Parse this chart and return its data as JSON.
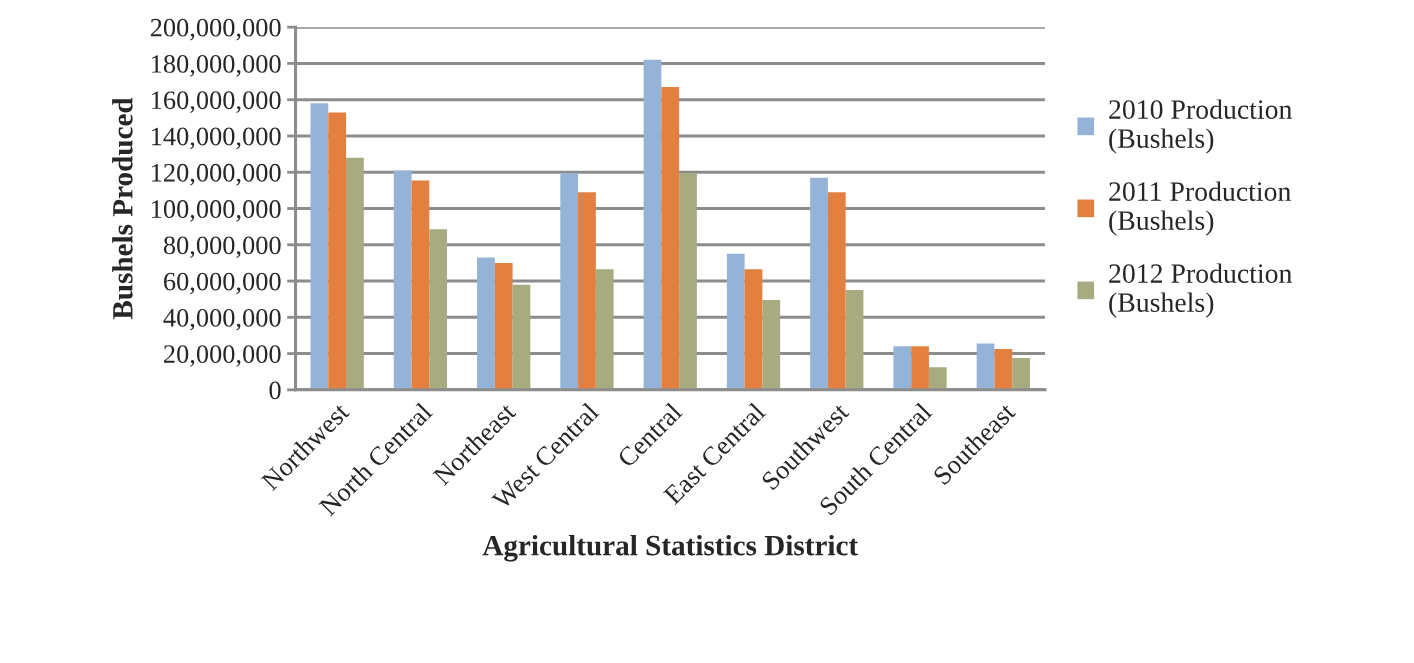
{
  "chart_data": {
    "type": "bar",
    "xlabel": "Agricultural Statistics District",
    "ylabel": "Bushels Produced",
    "categories": [
      "Northwest",
      "North Central",
      "Northeast",
      "West Central",
      "Central",
      "East Central",
      "Southwest",
      "South Central",
      "Southeast"
    ],
    "series": [
      {
        "name": "2010 Production\n(Bushels)",
        "color": "#95b3d7",
        "values": [
          158000000,
          121000000,
          73000000,
          119500000,
          182000000,
          75000000,
          117000000,
          24000000,
          25500000
        ]
      },
      {
        "name": "2011 Production\n(Bushels)",
        "color": "#e3803f",
        "values": [
          153000000,
          115500000,
          70000000,
          109000000,
          167000000,
          66500000,
          109000000,
          24000000,
          22500000
        ]
      },
      {
        "name": "2012 Production\n(Bushels)",
        "color": "#a8aa80",
        "values": [
          128000000,
          88500000,
          58000000,
          66500000,
          119500000,
          49500000,
          55000000,
          12500000,
          17500000
        ]
      }
    ],
    "ylim": [
      0,
      200000000
    ],
    "yticks": [
      0,
      {
        "value": 20000000,
        "label": "20,000,000"
      },
      {
        "value": 40000000,
        "label": "40,000,000"
      },
      {
        "value": 60000000,
        "label": "60,000,000"
      },
      {
        "value": 80000000,
        "label": "80,000,000"
      },
      {
        "value": 100000000,
        "label": "100,000,000"
      },
      {
        "value": 120000000,
        "label": "120,000,000"
      },
      {
        "value": 140000000,
        "label": "140,000,000"
      },
      {
        "value": 160000000,
        "label": "160,000,000"
      },
      {
        "value": 180000000,
        "label": "180,000,000"
      },
      {
        "value": 200000000,
        "label": "200,000,000"
      }
    ],
    "grid": "y",
    "legend": "right"
  }
}
